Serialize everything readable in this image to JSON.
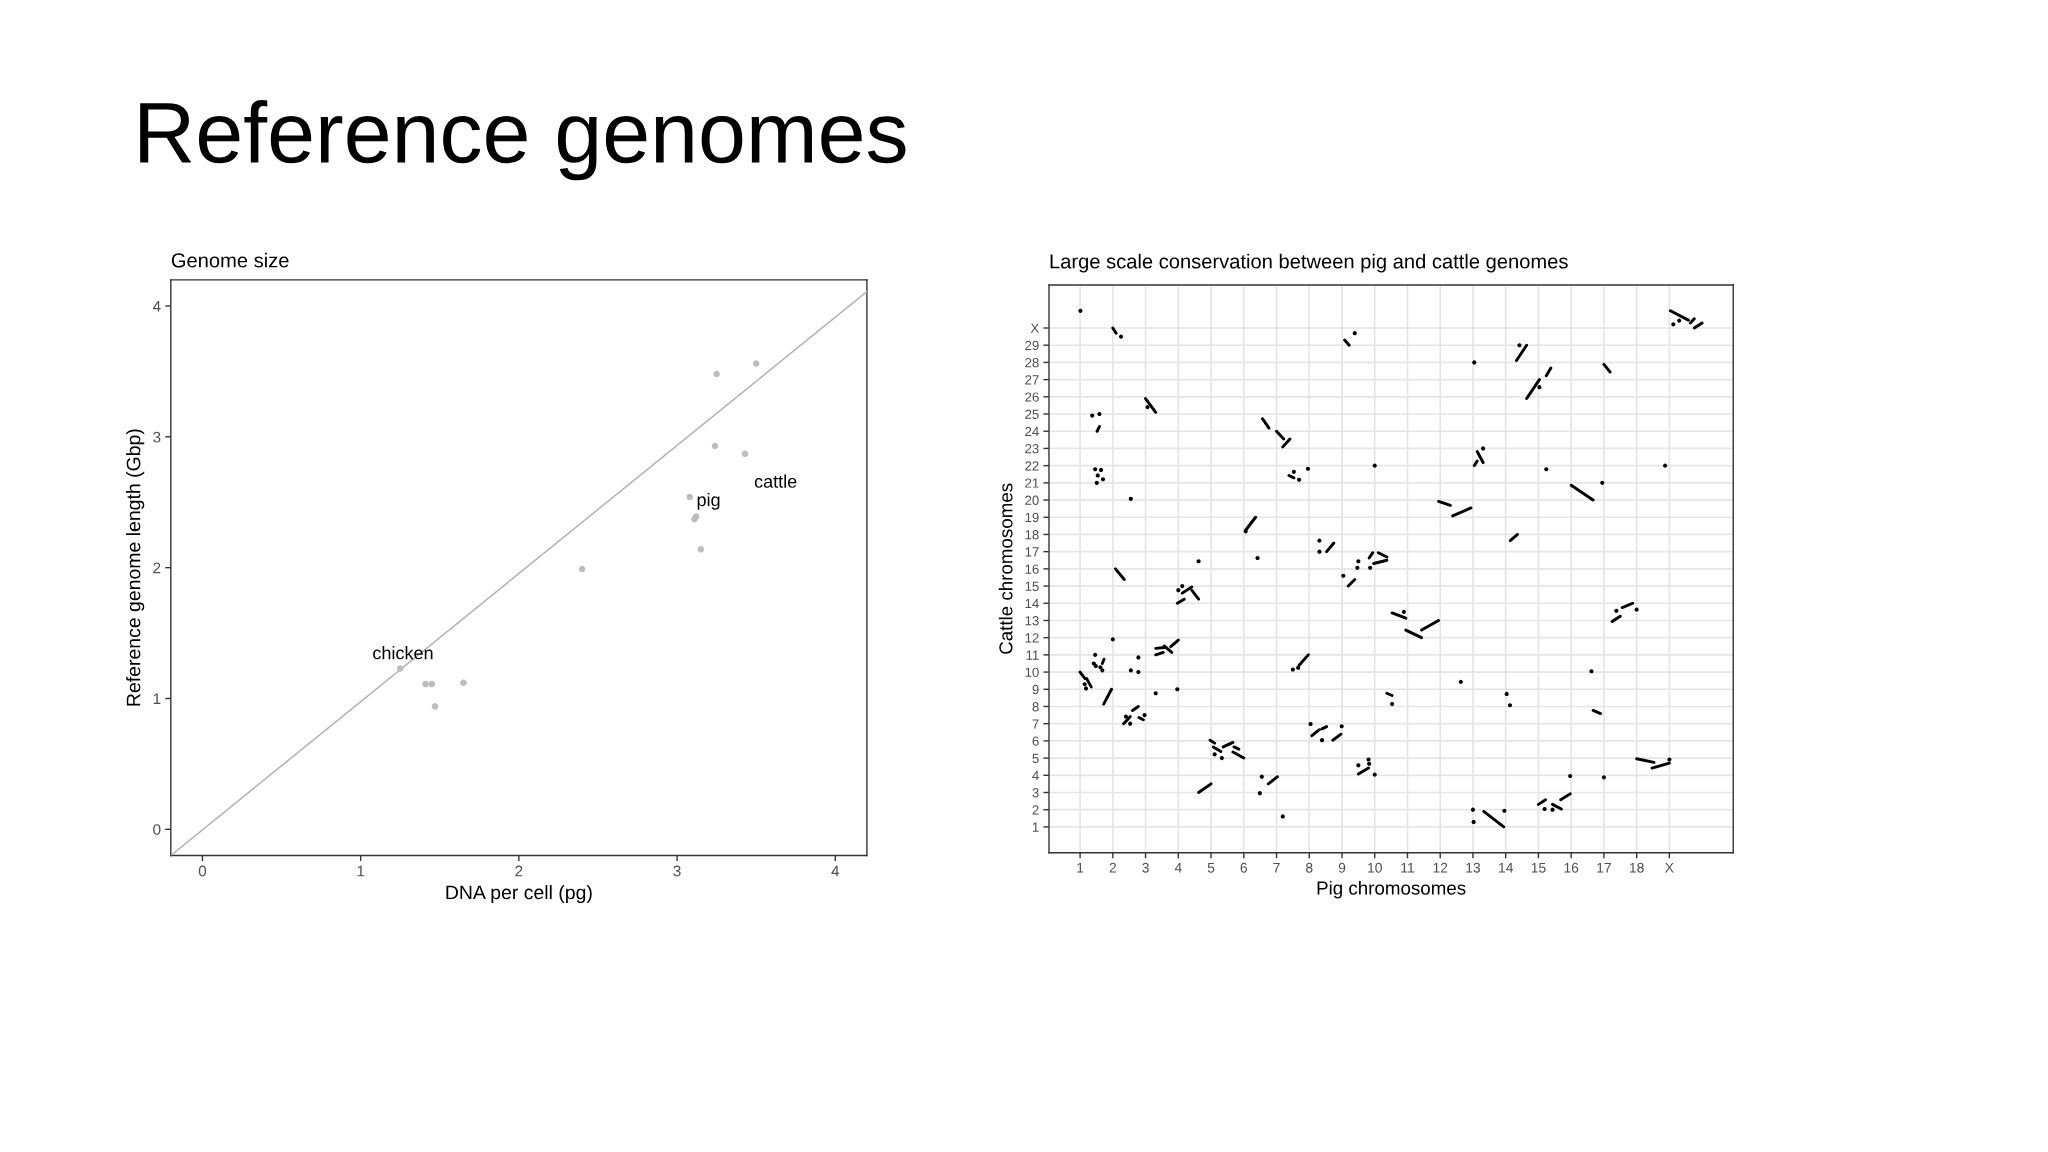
{
  "chart_data": [
    {
      "type": "other",
      "title": "Reference genomes"
    },
    {
      "type": "scatter",
      "title": "Genome size",
      "xlabel": "DNA per cell (pg)",
      "ylabel": "Reference genome length (Gbp)",
      "xlim": [
        -0.2,
        4.2
      ],
      "ylim": [
        -0.2,
        4.2
      ],
      "xticks": [
        0,
        1,
        2,
        3,
        4
      ],
      "yticks": [
        0,
        1,
        2,
        3,
        4
      ],
      "grid": false,
      "series": [
        {
          "type": "scatter",
          "color": "#bdbdbd",
          "marker": "circle",
          "x": [
            3.25,
            3.5,
            3.24,
            3.43,
            3.08,
            3.12,
            3.11,
            3.15,
            2.4,
            1.25,
            1.41,
            1.45,
            1.65,
            1.47
          ],
          "values": [
            3.48,
            3.56,
            2.93,
            2.87,
            2.54,
            2.39,
            2.37,
            2.14,
            1.99,
            1.23,
            1.11,
            1.11,
            1.12,
            0.94
          ]
        },
        {
          "type": "line",
          "color": "#b3b3b3",
          "x": [
            -0.2,
            4.2
          ],
          "values": [
            -0.2,
            4.11
          ]
        }
      ],
      "annotations": [
        {
          "text": "chicken",
          "x": 1.25,
          "y": 1.23
        },
        {
          "text": "pig",
          "x": 3.12,
          "y": 2.39
        },
        {
          "text": "cattle",
          "x": 3.43,
          "y": 2.87
        }
      ]
    },
    {
      "type": "line",
      "title": "Large scale conservation between pig and cattle genomes",
      "xlabel": "Pig chromosomes",
      "ylabel": "Cattle chromosomes",
      "xlim": [
        0.05,
        20.95
      ],
      "ylim": [
        -0.5,
        32.5
      ],
      "grid": true,
      "xticks": [
        1,
        2,
        3,
        4,
        5,
        6,
        7,
        8,
        9,
        10,
        11,
        12,
        13,
        14,
        15,
        16,
        17,
        18,
        {
          "value": 19,
          "label": "X"
        }
      ],
      "yticks": [
        1,
        2,
        3,
        4,
        5,
        6,
        7,
        8,
        9,
        10,
        11,
        12,
        13,
        14,
        15,
        16,
        17,
        18,
        19,
        20,
        21,
        22,
        23,
        24,
        25,
        26,
        27,
        28,
        29,
        {
          "value": 30,
          "label": "X"
        }
      ],
      "series": [
        {
          "type": "line",
          "color": "#000000",
          "x": [
            1,
            1.15,
            null,
            1.2,
            1.34,
            null,
            1.52,
            1.59,
            null,
            1.68,
            1.73,
            null,
            2.08,
            2.35,
            null,
            2.6,
            2.78,
            null,
            2.8,
            2.93,
            null,
            3,
            3.31,
            null,
            3.57,
            3.8,
            null,
            3.97,
            4.18,
            null,
            4.41,
            4.62,
            null,
            4.97,
            5.11,
            null,
            5.37,
            5.67,
            null,
            5.7,
            5.85,
            null,
            6.57,
            6.77,
            null,
            7,
            7.22,
            null,
            7.38,
            7.53,
            null,
            8.08,
            8.31,
            null,
            8.39,
            8.53,
            null,
            8.72,
            8.97,
            null,
            9.08,
            9.22,
            null,
            9.5,
            9.81,
            null,
            9.83,
            9.94,
            null,
            9.97,
            10.37,
            null,
            10.53,
            10.95,
            null,
            11.43,
            11.95,
            null,
            12.38,
            12.94,
            null,
            13.04,
            13.13,
            null,
            13.33,
            13.94,
            null,
            14.14,
            14.36,
            null,
            14.64,
            15.03,
            null,
            15.24,
            15.38,
            null,
            15.43,
            15.7,
            null,
            16,
            16.67,
            null,
            17,
            17.19,
            null,
            17.25,
            17.5,
            null,
            17.56,
            17.88,
            null,
            18,
            18.53,
            null,
            19.03,
            19.58,
            null,
            19.64,
            19.76
          ],
          "values": [
            10,
            9.62,
            null,
            9.62,
            9.14,
            null,
            24,
            24.27,
            null,
            10.5,
            10.75,
            null,
            16,
            15.38,
            null,
            7.77,
            8,
            null,
            7.36,
            7.23,
            null,
            25.9,
            25.1,
            null,
            11.52,
            11.14,
            null,
            14,
            14.24,
            null,
            14.76,
            14.24,
            null,
            6.04,
            5.87,
            null,
            5.65,
            5.91,
            null,
            5.65,
            5.52,
            null,
            24.73,
            24.18,
            null,
            24,
            23.55,
            null,
            21.43,
            21.29,
            null,
            6.3,
            6.65,
            null,
            6.7,
            6.83,
            null,
            6.04,
            6.39,
            null,
            29.3,
            29,
            null,
            4.08,
            4.42,
            null,
            16.63,
            16.94,
            null,
            16.31,
            16.5,
            null,
            13.44,
            13.13,
            null,
            12.44,
            13,
            null,
            19.08,
            19.54,
            null,
            22,
            22.27,
            null,
            1.9,
            1,
            null,
            17.64,
            18,
            null,
            25.9,
            27,
            null,
            27.22,
            27.67,
            null,
            2.31,
            2.04,
            null,
            20.86,
            20,
            null,
            27.89,
            27.44,
            null,
            12.94,
            13.25,
            null,
            13.75,
            14,
            null,
            4.96,
            4.75,
            null,
            31,
            30.46,
            null,
            30.29,
            30.54
          ]
        },
        {
          "type": "line",
          "color": "#000000",
          "x": [
            1.72,
            1.96,
            null,
            2,
            2.1,
            null,
            2.33,
            2.53,
            null,
            3.31,
            3.57,
            null,
            3.77,
            4,
            null,
            4.12,
            4.41,
            null,
            4.62,
            5,
            null,
            5.07,
            5.3,
            null,
            5.67,
            6,
            null,
            6.05,
            6.36,
            null,
            6.75,
            7.03,
            null,
            7.19,
            7.41,
            null,
            7.69,
            7.97,
            null,
            8.53,
            8.75,
            null,
            9.19,
            9.39,
            null,
            10.11,
            10.37,
            null,
            10.95,
            11.43,
            null,
            11.95,
            12.31,
            null,
            13.13,
            13.31,
            null,
            14.33,
            14.64,
            null,
            15,
            15.22,
            null,
            15.68,
            15.97,
            null,
            16.67,
            16.9,
            null,
            18.47,
            19,
            null,
            19.76,
            20
          ],
          "values": [
            8.14,
            9,
            null,
            30,
            29.7,
            null,
            7,
            7.41,
            null,
            11.38,
            11.43,
            null,
            11.48,
            11.86,
            null,
            14.59,
            14.94,
            null,
            3,
            3.5,
            null,
            5.65,
            5.39,
            null,
            5.35,
            5,
            null,
            18.23,
            19,
            null,
            3.5,
            3.92,
            null,
            23.09,
            23.55,
            null,
            10.4,
            11,
            null,
            17,
            17.5,
            null,
            15,
            15.38,
            null,
            16.94,
            16.69,
            null,
            12.44,
            12,
            null,
            19.92,
            19.69,
            null,
            22.82,
            22.18,
            null,
            28.11,
            29,
            null,
            2.31,
            2.58,
            null,
            2.58,
            2.92,
            null,
            7.77,
            7.59,
            null,
            4.42,
            4.71,
            null,
            30,
            30.29
          ]
        },
        {
          "type": "line",
          "color": "#000000",
          "x": [
            3.31,
            3.54,
            null,
            10.37,
            10.53
          ],
          "values": [
            11,
            11.14,
            null,
            8.77,
            8.64
          ]
        },
        {
          "type": "scatter",
          "color": "#000000",
          "marker": "circle",
          "x": [
            1.01,
            2.25,
            3.06,
            1.46,
            1.51,
            1.54,
            1.7,
            2.55,
            7.53,
            8.31,
            8.31,
            4.62,
            4,
            4.12,
            1.14,
            1.18,
            1.46,
            1.68,
            2.4,
            2.53,
            2.55,
            2.78,
            2.78,
            3.31,
            3.97,
            5.11,
            5.33,
            6.55,
            7.19,
            7.5,
            7.66,
            8.39,
            9.5,
            9.81,
            9.83,
            10,
            10.53,
            12.63,
            13,
            13.02,
            13.96,
            15.19,
            15.43,
            15.97,
            17,
            16.62,
            19,
            9.39,
            13.04,
            14.42,
            15.03,
            19.3,
            19.12,
            10,
            15.24,
            18.87,
            13.31,
            16.95,
            9.5,
            9.47,
            9.86,
            10.89,
            17.38,
            18,
            8.04,
            1.42,
            1.64,
            2,
            6.42,
            7.69,
            7.96,
            14.03,
            1.37,
            1.48,
            1.59,
            2.97,
            6.49,
            8.99,
            14.13,
            1.62,
            9.04,
            6.06
          ],
          "values": [
            31,
            29.5,
            25.4,
            21.79,
            21,
            21.43,
            21.21,
            20.07,
            21.64,
            17.64,
            17,
            16.44,
            14.76,
            15,
            9.29,
            9.05,
            11,
            10.1,
            7.41,
            7,
            10.1,
            10,
            10.85,
            8.77,
            9,
            5.22,
            5,
            3.92,
            1.61,
            10.15,
            10.25,
            6.04,
            4.58,
            4.92,
            4.67,
            4.04,
            8.14,
            9.43,
            2,
            1.29,
            1.94,
            2.04,
            2,
            3.96,
            3.88,
            10.05,
            4.92,
            29.7,
            28,
            29,
            26.56,
            30.43,
            30.21,
            22,
            21.79,
            22,
            23,
            21,
            16.44,
            16.06,
            16.06,
            13.5,
            13.56,
            13.63,
            6.98,
            10.5,
            21.75,
            11.9,
            16.63,
            21.18,
            21.82,
            8.73,
            24.91,
            10.35,
            25,
            7.5,
            2.96,
            6.85,
            8.07,
            10.28,
            15.6,
            18.18
          ]
        }
      ]
    }
  ]
}
